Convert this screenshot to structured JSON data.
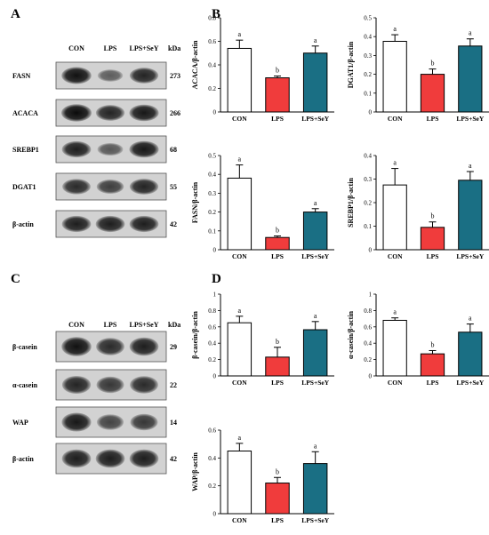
{
  "panels": {
    "a": "A",
    "b": "B",
    "c": "C",
    "d": "D"
  },
  "blots_top": {
    "lanes": [
      "CON",
      "LPS",
      "LPS+SeY"
    ],
    "unit": "kDa",
    "rows": [
      {
        "protein": "FASN",
        "kda": "273",
        "intensity": [
          0.95,
          0.35,
          0.8
        ]
      },
      {
        "protein": "ACACA",
        "kda": "266",
        "intensity": [
          1.0,
          0.8,
          0.9
        ]
      },
      {
        "protein": "SREBP1",
        "kda": "68",
        "intensity": [
          0.85,
          0.4,
          0.9
        ]
      },
      {
        "protein": "DGAT1",
        "kda": "55",
        "intensity": [
          0.75,
          0.6,
          0.8
        ]
      },
      {
        "protein": "β-actin",
        "kda": "42",
        "intensity": [
          0.85,
          0.85,
          0.85
        ]
      }
    ]
  },
  "blots_bottom": {
    "lanes": [
      "CON",
      "LPS",
      "LPS+SeY"
    ],
    "unit": "kDa",
    "rows": [
      {
        "protein": "β-casein",
        "kda": "29",
        "intensity": [
          0.95,
          0.75,
          0.85
        ]
      },
      {
        "protein": "α-casein",
        "kda": "22",
        "intensity": [
          0.8,
          0.65,
          0.75
        ]
      },
      {
        "protein": "WAP",
        "kda": "14",
        "intensity": [
          0.9,
          0.55,
          0.65
        ]
      },
      {
        "protein": "β-actin",
        "kda": "42",
        "intensity": [
          0.85,
          0.85,
          0.85
        ]
      }
    ]
  },
  "colors": {
    "con": "#ffffff",
    "lps": "#f03c3c",
    "sey": "#1a6f84"
  },
  "chart_data": [
    {
      "type": "bar",
      "categories": [
        "CON",
        "LPS",
        "LPS+SeY"
      ],
      "values": [
        0.54,
        0.29,
        0.5
      ],
      "errors": [
        0.07,
        0.015,
        0.06
      ],
      "letters": [
        "a",
        "b",
        "a"
      ],
      "ylabel": "ACACA/β-actin",
      "ylim": [
        0,
        0.8
      ],
      "ticks": [
        0,
        0.2,
        0.4,
        0.6,
        0.8
      ]
    },
    {
      "type": "bar",
      "categories": [
        "CON",
        "LPS",
        "LPS+SeY"
      ],
      "values": [
        0.375,
        0.2,
        0.35
      ],
      "errors": [
        0.035,
        0.028,
        0.038
      ],
      "letters": [
        "a",
        "b",
        "a"
      ],
      "ylabel": "DGAT1/β-actin",
      "ylim": [
        0,
        0.5
      ],
      "ticks": [
        0,
        0.1,
        0.2,
        0.3,
        0.4,
        0.5
      ]
    },
    {
      "type": "bar",
      "categories": [
        "CON",
        "LPS",
        "LPS+SeY"
      ],
      "values": [
        0.38,
        0.065,
        0.2
      ],
      "errors": [
        0.07,
        0.008,
        0.018
      ],
      "letters": [
        "a",
        "b",
        "a"
      ],
      "ylabel": "FASN/β-actin",
      "ylim": [
        0,
        0.5
      ],
      "ticks": [
        0,
        0.1,
        0.2,
        0.3,
        0.4,
        0.5
      ]
    },
    {
      "type": "bar",
      "categories": [
        "CON",
        "LPS",
        "LPS+SeY"
      ],
      "values": [
        0.275,
        0.095,
        0.295
      ],
      "errors": [
        0.07,
        0.023,
        0.037
      ],
      "letters": [
        "a",
        "b",
        "a"
      ],
      "ylabel": "SREBP1/β-actin",
      "ylim": [
        0,
        0.4
      ],
      "ticks": [
        0,
        0.1,
        0.2,
        0.3,
        0.4
      ]
    },
    {
      "type": "bar",
      "categories": [
        "CON",
        "LPS",
        "LPS+SeY"
      ],
      "values": [
        0.65,
        0.23,
        0.565
      ],
      "errors": [
        0.08,
        0.12,
        0.1
      ],
      "letters": [
        "a",
        "b",
        "a"
      ],
      "ylabel": "β-casein/β-actin",
      "ylim": [
        0,
        1.0
      ],
      "ticks": [
        0,
        0.2,
        0.4,
        0.6,
        0.8,
        1.0
      ]
    },
    {
      "type": "bar",
      "categories": [
        "CON",
        "LPS",
        "LPS+SeY"
      ],
      "values": [
        0.68,
        0.27,
        0.535
      ],
      "errors": [
        0.03,
        0.04,
        0.1
      ],
      "letters": [
        "a",
        "b",
        "a"
      ],
      "ylabel": "α-casein/β-actin",
      "ylim": [
        0,
        1.0
      ],
      "ticks": [
        0,
        0.2,
        0.4,
        0.6,
        0.8,
        1.0
      ]
    },
    {
      "type": "bar",
      "categories": [
        "CON",
        "LPS",
        "LPS+SeY"
      ],
      "values": [
        0.45,
        0.22,
        0.36
      ],
      "errors": [
        0.055,
        0.04,
        0.085
      ],
      "letters": [
        "a",
        "b",
        "a"
      ],
      "ylabel": "WAP/β-actin",
      "ylim": [
        0,
        0.6
      ],
      "ticks": [
        0,
        0.2,
        0.4,
        0.6
      ]
    }
  ]
}
